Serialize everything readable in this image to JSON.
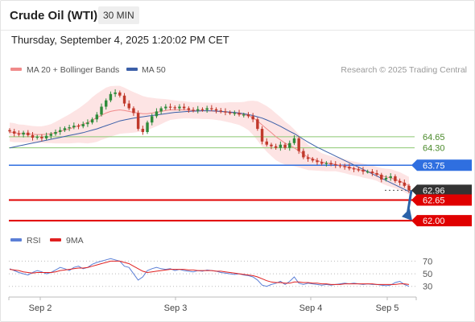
{
  "header": {
    "title": "Crude Oil (WTI)",
    "timeframe": "30 MIN"
  },
  "timestamp": "Thursday, September 4, 2025 1:20:02 PM CET",
  "legend": {
    "ma20": "MA 20 + Bollinger Bands",
    "ma50": "MA 50",
    "credit": "Research © 2025 Trading Central",
    "ma20_color": "#f08a8a",
    "ma50_color": "#3b5fa8"
  },
  "rsi_legend": {
    "rsi": "RSI",
    "ma9": "9MA",
    "rsi_color": "#5b7fd6",
    "ma9_color": "#e02020"
  },
  "colors": {
    "up": "#2e8b3a",
    "down": "#c0392b",
    "band_fill": "#fde4e4",
    "support": "#e00000",
    "pivot": "#2f6fe0",
    "resistance": "#8cc870",
    "last": "#333333"
  },
  "chart_data": [
    {
      "type": "candlestick",
      "symbol": "Crude Oil (WTI)",
      "interval": "30 MIN",
      "x_ticks": [
        "Sep 2",
        "Sep 3",
        "Sep 4",
        "Sep 5"
      ],
      "ylim": [
        61.85,
        66.3
      ],
      "price_levels": [
        {
          "label": "64.65",
          "value": 64.65,
          "kind": "resistance"
        },
        {
          "label": "64.30",
          "value": 64.3,
          "kind": "resistance"
        },
        {
          "label": "63.75",
          "value": 63.75,
          "kind": "pivot"
        },
        {
          "label": "62.96",
          "value": 62.96,
          "kind": "last"
        },
        {
          "label": "62.65",
          "value": 62.65,
          "kind": "support"
        },
        {
          "label": "62.00",
          "value": 62.0,
          "kind": "support"
        }
      ],
      "forecast": {
        "from": 62.96,
        "to": 62.0,
        "direction": "down"
      },
      "ohlc_close_path": [
        64.82,
        64.75,
        64.72,
        64.78,
        64.7,
        64.62,
        64.65,
        64.6,
        64.68,
        64.74,
        64.8,
        64.86,
        64.92,
        64.95,
        65.0,
        64.98,
        65.05,
        65.1,
        65.2,
        65.35,
        65.6,
        65.8,
        66.0,
        66.05,
        65.95,
        65.7,
        65.55,
        65.4,
        64.9,
        64.8,
        65.1,
        65.3,
        65.45,
        65.55,
        65.6,
        65.58,
        65.55,
        65.6,
        65.55,
        65.5,
        65.48,
        65.52,
        65.5,
        65.55,
        65.52,
        65.48,
        65.45,
        65.42,
        65.4,
        65.4,
        65.35,
        65.35,
        65.3,
        65.2,
        64.9,
        64.5,
        64.4,
        64.35,
        64.3,
        64.4,
        64.3,
        64.45,
        64.6,
        64.2,
        64.0,
        63.95,
        63.9,
        63.85,
        63.8,
        63.82,
        63.78,
        63.75,
        63.72,
        63.7,
        63.65,
        63.62,
        63.6,
        63.55,
        63.55,
        63.5,
        63.45,
        63.3,
        63.35,
        63.4,
        63.25,
        63.2,
        63.1,
        62.96
      ],
      "ma20": [
        64.8,
        64.78,
        64.76,
        64.75,
        64.74,
        64.73,
        64.72,
        64.72,
        64.73,
        64.75,
        64.78,
        64.82,
        64.86,
        64.9,
        64.95,
        65.0,
        65.05,
        65.1,
        65.18,
        65.25,
        65.33,
        65.4,
        65.45,
        65.48,
        65.5,
        65.48,
        65.45,
        65.42,
        65.4,
        65.38,
        65.38,
        65.4,
        65.42,
        65.45,
        65.48,
        65.5,
        65.5,
        65.5,
        65.5,
        65.49,
        65.48,
        65.48,
        65.47,
        65.47,
        65.46,
        65.45,
        65.44,
        65.43,
        65.42,
        65.4,
        65.38,
        65.35,
        65.32,
        65.25,
        65.15,
        65.02,
        64.9,
        64.78,
        64.65,
        64.55,
        64.45,
        64.38,
        64.3,
        64.2,
        64.1,
        64.0,
        63.95,
        63.9,
        63.85,
        63.82,
        63.8,
        63.78,
        63.75,
        63.72,
        63.68,
        63.65,
        63.62,
        63.58,
        63.55,
        63.52,
        63.48,
        63.42,
        63.38,
        63.35,
        63.3,
        63.25,
        63.18,
        63.1
      ],
      "ma50": [
        64.3,
        64.33,
        64.36,
        64.39,
        64.42,
        64.45,
        64.48,
        64.51,
        64.54,
        64.57,
        64.6,
        64.63,
        64.66,
        64.69,
        64.72,
        64.75,
        64.78,
        64.82,
        64.86,
        64.9,
        64.95,
        65.0,
        65.05,
        65.1,
        65.15,
        65.18,
        65.21,
        65.24,
        65.26,
        65.28,
        65.3,
        65.32,
        65.34,
        65.36,
        65.38,
        65.4,
        65.42,
        65.43,
        65.44,
        65.45,
        65.46,
        65.46,
        65.47,
        65.47,
        65.47,
        65.46,
        65.45,
        65.44,
        65.43,
        65.42,
        65.4,
        65.38,
        65.35,
        65.32,
        65.28,
        65.24,
        65.18,
        65.12,
        65.05,
        64.98,
        64.9,
        64.82,
        64.75,
        64.66,
        64.57,
        64.48,
        64.4,
        64.32,
        64.25,
        64.18,
        64.11,
        64.04,
        63.97,
        63.9,
        63.83,
        63.76,
        63.69,
        63.62,
        63.55,
        63.48,
        63.41,
        63.34,
        63.27,
        63.2,
        63.13,
        63.06,
        62.99,
        62.92
      ],
      "band_width": [
        0.3,
        0.3,
        0.28,
        0.28,
        0.27,
        0.26,
        0.26,
        0.26,
        0.28,
        0.3,
        0.34,
        0.38,
        0.42,
        0.46,
        0.5,
        0.54,
        0.6,
        0.66,
        0.72,
        0.76,
        0.78,
        0.8,
        0.8,
        0.78,
        0.76,
        0.72,
        0.68,
        0.64,
        0.6,
        0.56,
        0.52,
        0.48,
        0.44,
        0.4,
        0.36,
        0.32,
        0.3,
        0.28,
        0.27,
        0.26,
        0.26,
        0.26,
        0.26,
        0.26,
        0.26,
        0.27,
        0.28,
        0.3,
        0.32,
        0.34,
        0.36,
        0.4,
        0.46,
        0.54,
        0.62,
        0.68,
        0.72,
        0.74,
        0.74,
        0.72,
        0.68,
        0.64,
        0.58,
        0.52,
        0.46,
        0.4,
        0.36,
        0.32,
        0.28,
        0.26,
        0.24,
        0.22,
        0.22,
        0.22,
        0.22,
        0.22,
        0.22,
        0.22,
        0.22,
        0.22,
        0.22,
        0.24,
        0.26,
        0.28,
        0.28,
        0.28,
        0.28,
        0.28
      ]
    },
    {
      "type": "line",
      "name": "RSI panel",
      "ylim": [
        22,
        82
      ],
      "levels": [
        {
          "label": "70",
          "value": 70
        },
        {
          "label": "50",
          "value": 50
        },
        {
          "label": "30",
          "value": 30
        }
      ],
      "series": [
        {
          "name": "RSI",
          "values": [
            58,
            55,
            52,
            50,
            48,
            52,
            55,
            53,
            50,
            52,
            56,
            60,
            58,
            55,
            60,
            62,
            58,
            60,
            65,
            68,
            70,
            72,
            74,
            72,
            70,
            62,
            60,
            50,
            40,
            45,
            55,
            58,
            60,
            58,
            57,
            58,
            55,
            57,
            55,
            54,
            53,
            55,
            54,
            56,
            55,
            54,
            52,
            51,
            50,
            49,
            50,
            48,
            47,
            45,
            40,
            32,
            30,
            33,
            35,
            38,
            33,
            38,
            45,
            35,
            33,
            35,
            34,
            33,
            32,
            33,
            32,
            33,
            34,
            35,
            34,
            35,
            34,
            33,
            34,
            33,
            33,
            32,
            31,
            32,
            36,
            38,
            33,
            30
          ]
        },
        {
          "name": "9MA",
          "values": [
            57,
            56,
            55,
            53,
            52,
            51,
            52,
            52,
            52,
            52,
            53,
            55,
            56,
            57,
            58,
            59,
            59,
            60,
            62,
            64,
            66,
            68,
            70,
            70,
            70,
            68,
            66,
            62,
            58,
            54,
            52,
            53,
            54,
            55,
            56,
            57,
            57,
            57,
            57,
            56,
            56,
            55,
            55,
            55,
            55,
            54,
            54,
            53,
            52,
            51,
            50,
            49,
            48,
            47,
            45,
            42,
            39,
            37,
            36,
            36,
            35,
            35,
            37,
            37,
            36,
            36,
            35,
            35,
            34,
            34,
            33,
            33,
            33,
            34,
            34,
            34,
            34,
            34,
            34,
            34,
            33,
            33,
            33,
            33,
            33,
            34,
            34,
            33
          ]
        }
      ]
    }
  ]
}
